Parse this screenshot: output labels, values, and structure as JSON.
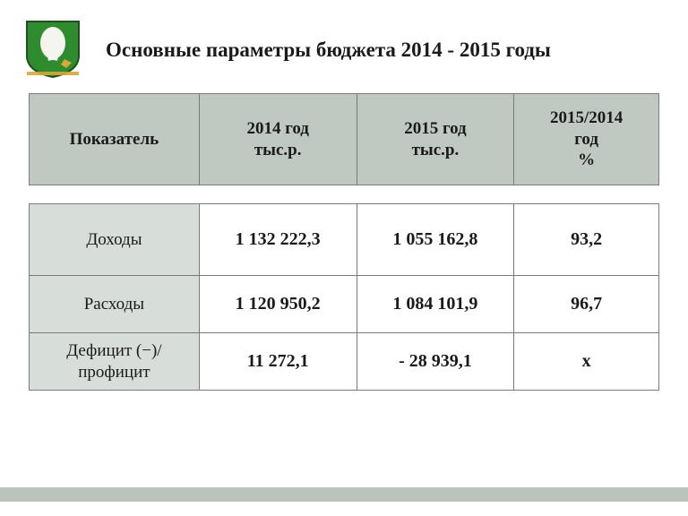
{
  "title": "Основные параметры бюджета 2014 - 2015 годы",
  "emblem": {
    "shield_fill": "#2e8b2e",
    "shield_stroke": "#234d23",
    "bird_fill": "#f5f5f0",
    "gold_fill": "#d4a83a"
  },
  "header_table": {
    "bg": "#bfc9c2",
    "border": "#7a7a7a",
    "font_size": 19,
    "cells": [
      "Показатель",
      "2014 год\nтыс.р.",
      "2015 год\nтыс.р.",
      "2015/2014\nгод\n%"
    ]
  },
  "data_table": {
    "label_bg": "#d7ddd8",
    "val_bg": "#ffffff",
    "border": "#7a7a7a",
    "rows": [
      {
        "label": "Доходы",
        "y2014": "1 132  222,3",
        "y2015": "1 055 162,8",
        "ratio": "93,2"
      },
      {
        "label": "Расходы",
        "y2014": "1 120 950,2",
        "y2015": "1 084 101,9",
        "ratio": "96,7"
      },
      {
        "label": "Дефицит (−)/\nпрофицит",
        "y2014": "11 272,1",
        "y2015": "- 28 939,1",
        "ratio": "х"
      }
    ]
  },
  "footer_bar_color": "#b8c4bc"
}
